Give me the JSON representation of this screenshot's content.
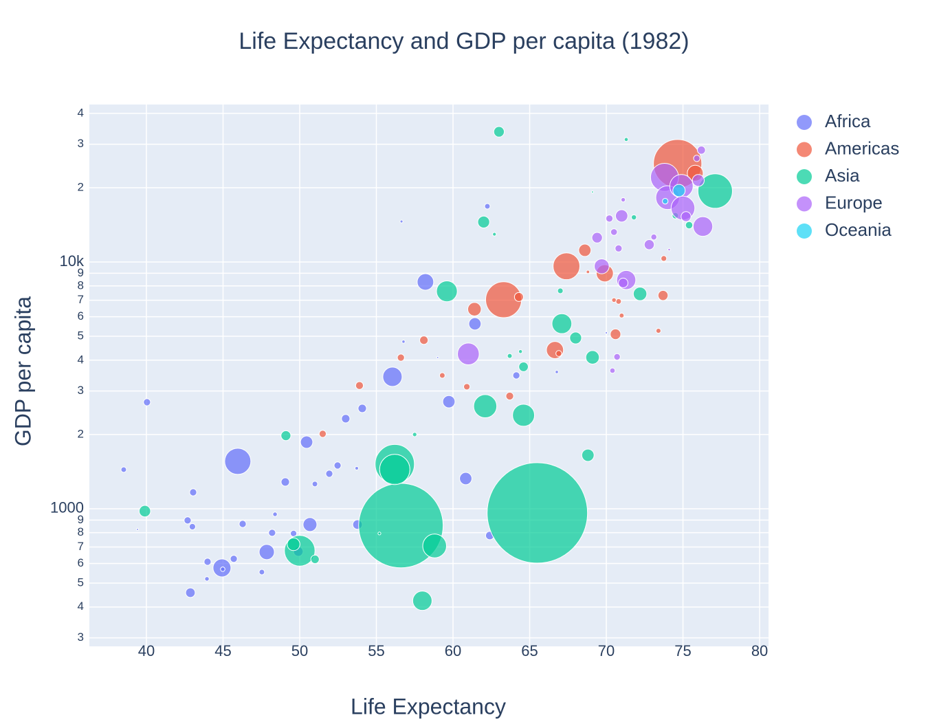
{
  "chart_data": {
    "type": "bubble",
    "title": "Life Expectancy and GDP per capita (1982)",
    "x_label": "Life Expectancy",
    "y_label": "GDP per capita",
    "xlim": [
      36.28,
      80.58
    ],
    "ylim": [
      277,
      43450
    ],
    "y_scale": "log",
    "grid": true,
    "legend_position": "right",
    "xticks": [
      40,
      45,
      50,
      55,
      60,
      65,
      70,
      75,
      80
    ],
    "yticks": [
      {
        "value": 300,
        "label": "3"
      },
      {
        "value": 400,
        "label": "4"
      },
      {
        "value": 500,
        "label": "5"
      },
      {
        "value": 600,
        "label": "6"
      },
      {
        "value": 700,
        "label": "7"
      },
      {
        "value": 800,
        "label": "8"
      },
      {
        "value": 900,
        "label": "9"
      },
      1000,
      {
        "value": 2000,
        "label": "2"
      },
      {
        "value": 3000,
        "label": "3"
      },
      {
        "value": 4000,
        "label": "4"
      },
      {
        "value": 5000,
        "label": "5"
      },
      {
        "value": 6000,
        "label": "6"
      },
      {
        "value": 7000,
        "label": "7"
      },
      {
        "value": 8000,
        "label": "8"
      },
      {
        "value": 9000,
        "label": "9"
      },
      {
        "value": 10000,
        "label": "10k"
      },
      {
        "value": 20000,
        "label": "2"
      },
      {
        "value": 30000,
        "label": "3"
      },
      {
        "value": 40000,
        "label": "4"
      }
    ],
    "series": [
      {
        "name": "Africa",
        "color": "#636efa",
        "x": [
          38.52,
          40.04,
          42.69,
          43.0,
          43.05,
          43.99,
          43.95,
          42.87,
          44.93,
          45.7,
          46.28,
          47.53,
          47.85,
          48.2,
          48.39,
          49.06,
          49.6,
          49.91,
          50.45,
          50.67,
          50.99,
          51.93,
          52.47,
          53.0,
          53.72,
          54.08,
          53.77,
          45.96,
          56.05,
          58.2,
          59.73,
          61.43,
          60.83,
          62.4,
          64.13,
          62.24,
          56.64,
          66.77,
          70.0,
          39.42,
          44.98,
          59.0,
          56.77
        ],
        "values": [
          1441,
          2703,
          897,
          846,
          1166,
          610,
          520,
          457,
          576,
          627,
          868,
          554,
          668,
          799,
          950,
          1284,
          794,
          671,
          1862,
          863,
          1260,
          1387,
          1498,
          2318,
          1459,
          2551,
          863,
          1557,
          3426,
          8303,
          2716,
          5615,
          1326,
          779,
          3470,
          16810,
          14590,
          3583,
          5164,
          825,
          569,
          4101,
          4755
        ],
        "size": [
          3,
          5,
          5,
          4,
          5,
          5,
          2,
          9,
          32,
          5,
          5,
          3,
          23,
          5,
          2,
          7,
          4,
          9,
          15,
          19,
          3,
          5,
          5,
          7,
          1.2,
          7,
          9,
          68,
          37,
          27,
          15,
          15,
          15,
          7,
          5,
          3,
          0.8,
          1,
          0.5,
          0.4,
          2,
          0.4,
          1
        ]
      },
      {
        "name": "Americas",
        "color": "#EF553B",
        "x": [
          74.65,
          63.3,
          67.4,
          75.8,
          69.9,
          66.65,
          61.4,
          68.6,
          70.6,
          73.7,
          64.3,
          58.1,
          53.9,
          51.5,
          63.7,
          60.9,
          56.6,
          59.3,
          66.9,
          70.8,
          73.4,
          71.0,
          70.5,
          68.8,
          73.75
        ],
        "values": [
          25010,
          7030,
          9611,
          22899,
          8998,
          4397,
          6434,
          11152,
          5096,
          7317,
          7213,
          4821,
          3157,
          2012,
          2862,
          3122,
          4098,
          3470,
          4258,
          6920,
          5262,
          6068,
          7009,
          9119,
          10331
        ],
        "size": [
          232,
          128,
          71,
          25,
          29,
          29,
          18,
          15,
          11,
          10,
          8,
          7,
          6,
          5,
          6,
          4,
          5,
          3,
          3.4,
          3,
          2.4,
          2.3,
          2,
          1.1,
          3.2
        ]
      },
      {
        "name": "Asia",
        "color": "#00cc96",
        "x": [
          65.5,
          56.6,
          56.2,
          56.2,
          50.0,
          77.1,
          71.3,
          63.0,
          59.6,
          58.8,
          62.1,
          64.6,
          67.1,
          58.0,
          72.2,
          68.0,
          68.8,
          69.1,
          39.9,
          49.6,
          49.1,
          51.0,
          62.0,
          64.6,
          63.7,
          75.4,
          74.5,
          71.8,
          69.1,
          62.7,
          67.0,
          57.5,
          64.4,
          55.2
        ],
        "values": [
          962,
          855,
          1517,
          1443,
          676,
          19384,
          31354,
          33693,
          7608,
          707,
          2604,
          2393,
          5623,
          424,
          7426,
          4920,
          1648,
          4107,
          978,
          718,
          1978,
          624,
          14517,
          3761,
          4162,
          14100,
          15400,
          15169,
          19211,
          12955,
          7640,
          2000,
          4336,
          794
        ],
        "size": [
          1000,
          708,
          153,
          91,
          93,
          118,
          1.5,
          11,
          43,
          56,
          53,
          48,
          39,
          37,
          18,
          14,
          15,
          18,
          13,
          16,
          9.6,
          7,
          14,
          9,
          2.3,
          5.3,
          3.9,
          2.6,
          0.4,
          1.3,
          3.1,
          1.8,
          1.4,
          0.8
        ]
      },
      {
        "name": "Europe",
        "color": "#ab63fa",
        "x": [
          73.8,
          74.0,
          74.9,
          75.0,
          76.3,
          71.3,
          61.0,
          69.7,
          70.2,
          76.0,
          76.2,
          75.9,
          69.4,
          71.0,
          71.1,
          72.8,
          75.2,
          70.4,
          70.7,
          74.1,
          73.1,
          70.8,
          70.5,
          71.1
        ],
        "values": [
          22032,
          18232,
          20294,
          16537,
          13926,
          8452,
          4241,
          9605,
          15000,
          21399,
          28397,
          26298,
          12546,
          15377,
          8224,
          11753,
          15268,
          3630,
          4126,
          11222,
          12618,
          11348,
          13221,
          17867
        ],
        "size": [
          78,
          56,
          54,
          56,
          38,
          36,
          47,
          22,
          5,
          14,
          6.5,
          4.1,
          11,
          15,
          9,
          10,
          9.8,
          2.8,
          4.2,
          0.6,
          3.5,
          5,
          4.4,
          1.9
        ]
      },
      {
        "name": "Oceania",
        "color": "#19d3f3",
        "x": [
          74.74,
          73.84
        ],
        "values": [
          19477,
          17632
        ],
        "size": [
          15,
          3.2
        ]
      }
    ]
  }
}
